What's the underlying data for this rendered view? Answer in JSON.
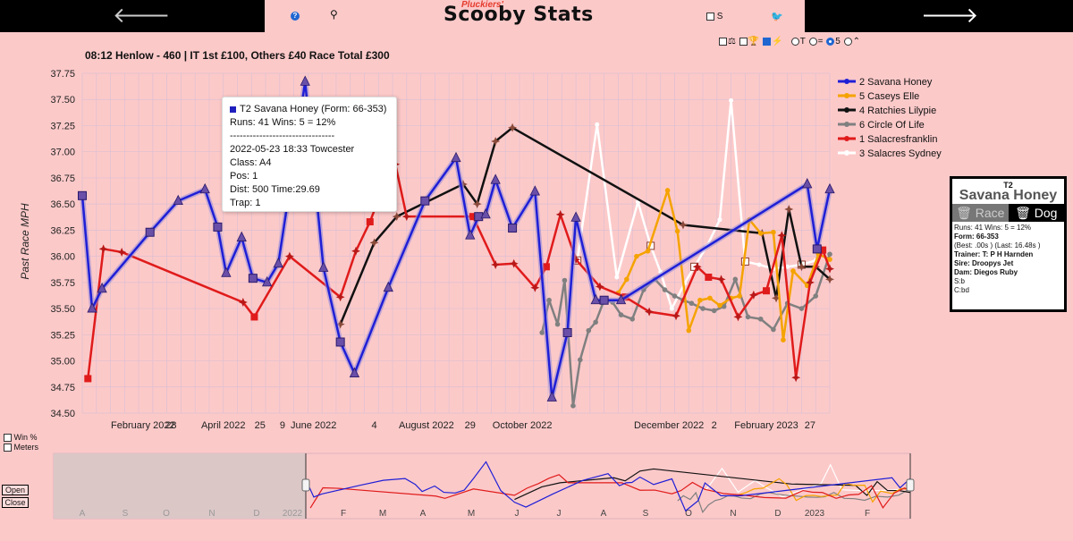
{
  "nav": {
    "prev_label": "🡐",
    "next_label": "🡒"
  },
  "header": {
    "brand_small": "Pluckiers'",
    "brand": "Scooby Stats",
    "s_label": "S"
  },
  "race": {
    "title": "08:12 Henlow - 460 | IT 1st £100, Others £40 Race Total £300"
  },
  "options": {
    "t_label": "T",
    "eq_label": "=",
    "five_label": "5"
  },
  "tooltip": {
    "header": "T2 Savana Honey (Form:  66-353)",
    "runs": "Runs: 41 Wins: 5 = 12%",
    "sep": "--------------------------------",
    "race": "2022-05-23 18:33 Towcester",
    "class": "Class: A4",
    "pos": "Pos: 1",
    "dist": "Dist: 500 Time:29.69",
    "trap": "Trap: 1"
  },
  "card": {
    "trap": "T2",
    "name": "Savana Honey",
    "race_btn": "Race",
    "dog_btn": "Dog",
    "runs": "Runs: 41 Wins: 5 = 12%",
    "form": "Form: 66-353",
    "best": "(Best: .00s ) (Last: 16.48s )",
    "trainer": "Trainer: T: P H Harnden",
    "sire": "Sire: Droopys Jet",
    "dam": "Dam: Diegos Ruby",
    "sb": "S:b",
    "cbd": "C:bd"
  },
  "side": {
    "win_pct": "Win %",
    "meters": "Meters",
    "open": "Open",
    "close": "Close"
  },
  "colors": {
    "bg": "#fcc9c9",
    "blue": "#1f1fd6",
    "orange": "#f5a300",
    "black": "#111111",
    "grey": "#808080",
    "red": "#e01b1b",
    "white": "#ffffff"
  },
  "chart_data": {
    "type": "line",
    "title": "",
    "ylabel": "Past Race MPH",
    "xlabel": "",
    "ylim": [
      34.5,
      37.75
    ],
    "xlim": [
      0,
      53
    ],
    "yticks": [
      "34.50",
      "34.75",
      "35.00",
      "35.25",
      "35.50",
      "35.75",
      "36.00",
      "36.25",
      "36.50",
      "36.75",
      "37.00",
      "37.25",
      "37.50",
      "37.75"
    ],
    "xticks": [
      {
        "x": 4.3,
        "label": "February 2022"
      },
      {
        "x": 6.3,
        "label": "28"
      },
      {
        "x": 10.0,
        "label": "April 2022"
      },
      {
        "x": 12.6,
        "label": "25"
      },
      {
        "x": 14.2,
        "label": "9"
      },
      {
        "x": 16.4,
        "label": "June 2022"
      },
      {
        "x": 20.7,
        "label": "4"
      },
      {
        "x": 24.4,
        "label": "August 2022"
      },
      {
        "x": 27.5,
        "label": "29"
      },
      {
        "x": 31.2,
        "label": "October 2022"
      },
      {
        "x": 41.6,
        "label": "December 2022"
      },
      {
        "x": 44.8,
        "label": "2"
      },
      {
        "x": 48.5,
        "label": "February 2023"
      },
      {
        "x": 51.6,
        "label": "27"
      }
    ],
    "series": [
      {
        "name": "2 Savana Honey",
        "color": "#1f1fd6",
        "marker": "#5a3d8a",
        "x": [
          0,
          0.7,
          1.4,
          4.8,
          6.8,
          8.7,
          9.6,
          10.2,
          11.3,
          12.1,
          13.1,
          13.9,
          14.7,
          15.8,
          17.1,
          18.3,
          19.3,
          21.7,
          24.3,
          26.5,
          27.5,
          28.1,
          28.6,
          29.3,
          30.5,
          32.1,
          33.3,
          34.4,
          35.0,
          36.4,
          37.0,
          38.2,
          51.4,
          52.1,
          53.0
        ],
        "y": [
          36.58,
          35.5,
          35.69,
          36.23,
          36.53,
          36.64,
          36.28,
          35.84,
          36.18,
          35.79,
          35.75,
          35.93,
          36.64,
          37.67,
          35.89,
          35.18,
          34.88,
          35.7,
          36.53,
          36.94,
          36.2,
          36.38,
          36.4,
          36.73,
          36.27,
          36.62,
          34.65,
          35.27,
          36.37,
          35.58,
          35.58,
          35.58,
          36.69,
          36.07,
          36.64
        ]
      },
      {
        "name": "5 Caseys Elle",
        "color": "#f5a300",
        "marker": "#f5a300",
        "x": [
          38.0,
          38.6,
          39.3,
          40.1,
          41.5,
          42.2,
          43.0,
          43.8,
          44.5,
          45.2,
          46.0,
          46.6,
          47.3,
          48.1,
          49.0,
          49.7,
          50.4,
          51.4,
          52.2,
          53.0
        ],
        "y": [
          35.65,
          35.78,
          36.0,
          36.05,
          36.63,
          36.24,
          35.29,
          35.58,
          35.6,
          35.53,
          35.6,
          35.62,
          36.35,
          36.22,
          36.23,
          35.2,
          35.86,
          35.72,
          36.02,
          35.97
        ]
      },
      {
        "name": "4 Ratchies Lilypie",
        "color": "#111111",
        "marker": "#8a4a3a",
        "x": [
          18.3,
          20.7,
          22.3,
          27.0,
          28.0,
          29.3,
          30.5,
          42.6,
          48.2,
          49.2,
          50.1,
          51.0,
          52.0,
          53.0
        ],
        "y": [
          35.35,
          36.13,
          36.38,
          36.69,
          36.5,
          37.1,
          37.23,
          36.3,
          36.22,
          35.6,
          36.45,
          35.9,
          35.9,
          35.78
        ]
      },
      {
        "name": "6 Circle Of Life",
        "color": "#808080",
        "marker": "#808080",
        "x": [
          32.6,
          33.1,
          33.7,
          34.2,
          34.8,
          35.3,
          35.9,
          36.4,
          37.0,
          37.6,
          38.2,
          39.0,
          39.8,
          40.6,
          41.3,
          42.0,
          42.6,
          43.2,
          44.0,
          44.8,
          45.5,
          46.3,
          47.2,
          48.1,
          49.0,
          50.0,
          51.0,
          52.0,
          53.0
        ],
        "y": [
          35.27,
          35.58,
          35.35,
          35.77,
          34.57,
          35.01,
          35.29,
          35.37,
          35.58,
          35.56,
          35.44,
          35.4,
          35.68,
          35.78,
          35.68,
          35.62,
          35.58,
          35.55,
          35.5,
          35.48,
          35.52,
          35.78,
          35.42,
          35.4,
          35.3,
          35.55,
          35.5,
          35.62,
          36.02
        ]
      },
      {
        "name": "1 Salacresfranklin",
        "color": "#e01b1b",
        "marker": "#e01b1b",
        "x": [
          0.4,
          1.5,
          2.8,
          11.4,
          12.2,
          14.7,
          18.3,
          19.4,
          20.4,
          21.3,
          22.2,
          23.0,
          27.7,
          29.3,
          30.6,
          32.1,
          32.9,
          33.9,
          35.0,
          36.7,
          38.5,
          40.2,
          42.1,
          43.6,
          44.4,
          45.3,
          46.5,
          47.6,
          48.5,
          49.6,
          50.6,
          51.6,
          52.5,
          53.0
        ],
        "y": [
          34.83,
          36.07,
          36.04,
          35.56,
          35.42,
          36.0,
          35.61,
          36.05,
          36.33,
          36.65,
          36.88,
          36.38,
          36.38,
          35.92,
          35.93,
          35.7,
          35.9,
          36.4,
          35.97,
          35.71,
          35.61,
          35.47,
          35.43,
          35.9,
          35.8,
          35.78,
          35.42,
          35.63,
          35.67,
          36.2,
          34.84,
          35.75,
          36.06,
          35.88
        ]
      },
      {
        "name": "3 Salacres Sydney",
        "color": "#ffffff",
        "marker": "#8a4a3a",
        "x": [
          35.1,
          36.5,
          37.9,
          39.4,
          40.3,
          41.0,
          41.8,
          42.7,
          43.4,
          44.3,
          45.2,
          46.0,
          47.0,
          48.0,
          49.0,
          50.0,
          51.0,
          52.0
        ],
        "y": [
          35.96,
          37.26,
          35.8,
          36.52,
          36.1,
          35.85,
          35.5,
          35.74,
          35.9,
          36.1,
          36.35,
          37.49,
          35.95,
          35.92,
          35.88,
          35.9,
          35.92,
          35.96
        ]
      }
    ],
    "legend_placement": "top-right",
    "tooltip_point": {
      "x": 15.8,
      "y": 37.67
    }
  },
  "navigator": {
    "labels": [
      "A",
      "S",
      "O",
      "N",
      "D",
      "2022",
      "F",
      "M",
      "A",
      "M",
      "J",
      "J",
      "A",
      "S",
      "O",
      "N",
      "D",
      "2023",
      "F"
    ]
  }
}
